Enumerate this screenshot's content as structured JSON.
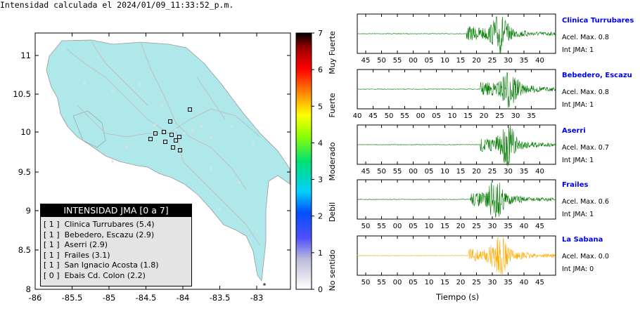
{
  "map": {
    "title": "Intensidad calculada el 2024/01/09_11:33:52_p.m.",
    "x_ticks": [
      "-86",
      "-85.5",
      "-85",
      "-84.5",
      "-84",
      "-83.5",
      "-83"
    ],
    "y_ticks": [
      "11",
      "10.5",
      "10",
      "9.5",
      "9",
      "8.5",
      "8"
    ],
    "land_color": "#aee8ea",
    "marker_color": "#000000",
    "legend": {
      "title": "INTENSIDAD JMA [0 a 7]",
      "rows": [
        {
          "level": "[ 1 ]",
          "text": "Clinica Turrubares (5.4)"
        },
        {
          "level": "[ 1 ]",
          "text": "Bebedero, Escazu (2.9)"
        },
        {
          "level": "[ 1 ]",
          "text": "Aserri (2.9)"
        },
        {
          "level": "[ 1 ]",
          "text": "Frailes (3.1)"
        },
        {
          "level": "[ 1 ]",
          "text": "San Ignacio Acosta (1.8)"
        },
        {
          "level": "[ 0 ]",
          "text": "Ebais Cd. Colon (2.2)"
        }
      ]
    }
  },
  "colorbar": {
    "ticks": [
      "0",
      "1",
      "2",
      "3",
      "4",
      "5",
      "6",
      "7"
    ],
    "labels": [
      "No sentido",
      "Debil",
      "Moderado",
      "Fuerte",
      "Muy Fuerte"
    ]
  },
  "chart_data": {
    "type": "line",
    "xlabel": "Tiempo (s)",
    "series": [
      {
        "name": "Clinica Turrubares",
        "acel_label": "Acel. Max. 0.8",
        "jma_label": "Int JMA: 1",
        "color": "#007a00",
        "onset": 0.55,
        "peak": 0.72,
        "ticks": [
          "45",
          "50",
          "55",
          "00",
          "05",
          "10",
          "15",
          "20",
          "25",
          "30",
          "35",
          "40"
        ]
      },
      {
        "name": "Bebedero, Escazu",
        "acel_label": "Acel. Max. 0.8",
        "jma_label": "Int JMA: 1",
        "color": "#007a00",
        "onset": 0.62,
        "peak": 0.77,
        "ticks": [
          "40",
          "45",
          "50",
          "55",
          "00",
          "05",
          "10",
          "15",
          "20",
          "25",
          "30",
          "35"
        ]
      },
      {
        "name": "Aserri",
        "acel_label": "Acel. Max. 0.7",
        "jma_label": "Int JMA: 1",
        "color": "#007a00",
        "onset": 0.62,
        "peak": 0.76,
        "ticks": [
          "45",
          "50",
          "55",
          "00",
          "05",
          "10",
          "15",
          "20",
          "25",
          "30",
          "35",
          "40"
        ]
      },
      {
        "name": "Frailes",
        "acel_label": "Acel. Max. 0.6",
        "jma_label": "Int JMA: 1",
        "color": "#007a00",
        "onset": 0.57,
        "peak": 0.7,
        "ticks": [
          "50",
          "55",
          "00",
          "05",
          "10",
          "15",
          "20",
          "25",
          "30",
          "35",
          "40",
          "45"
        ]
      },
      {
        "name": "La Sabana",
        "acel_label": "Acel. Max. 0.0",
        "jma_label": "Int JMA: 0",
        "color": "#ffaa00",
        "onset": 0.56,
        "peak": 0.72,
        "ticks": [
          "50",
          "55",
          "00",
          "05",
          "10",
          "15",
          "20",
          "25",
          "30",
          "35",
          "40",
          "45"
        ]
      }
    ]
  }
}
